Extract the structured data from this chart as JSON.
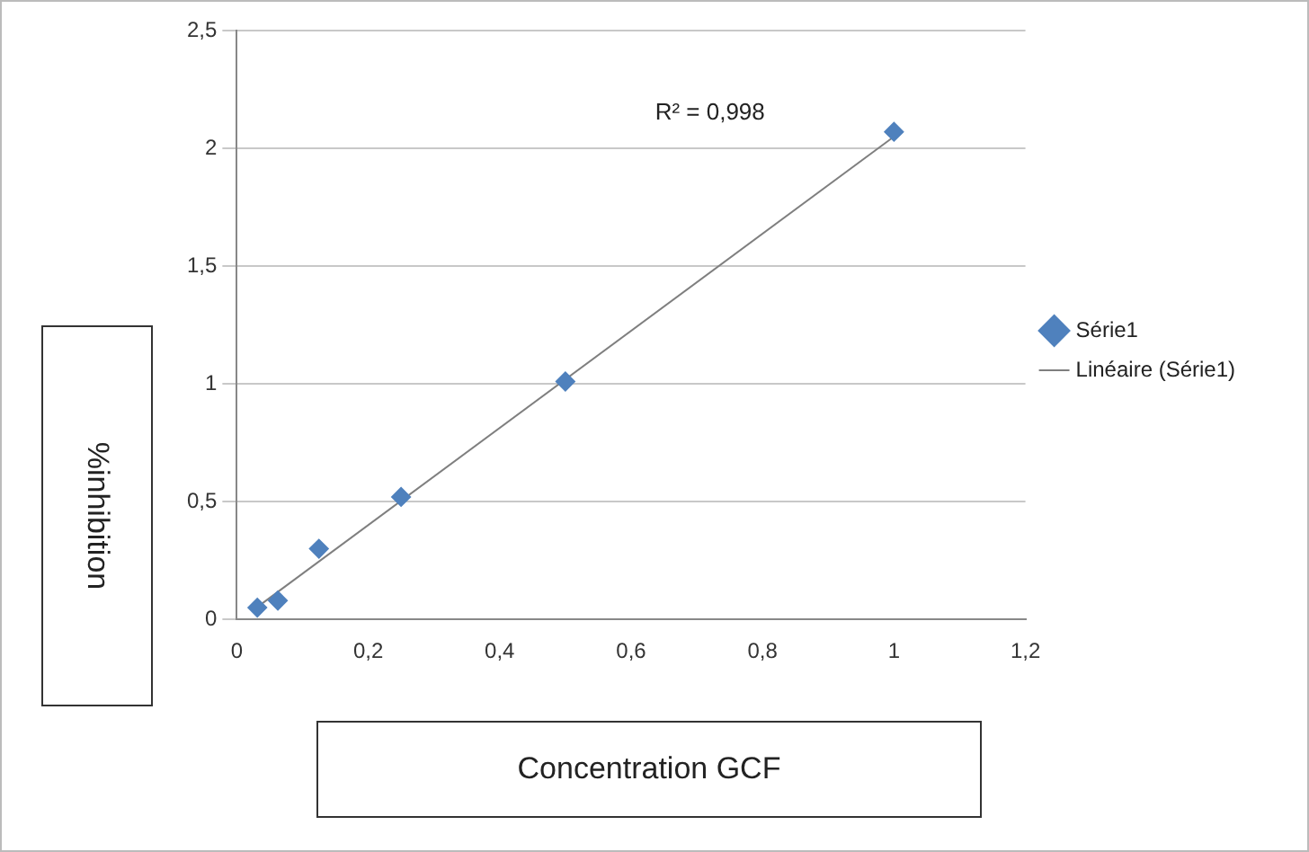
{
  "chart_data": {
    "type": "scatter",
    "xlabel": "Concentration GCF",
    "ylabel": "%inhibition",
    "annotations": [
      "R² = 0,998"
    ],
    "series": [
      {
        "name": "Série1",
        "color": "#4f81bd",
        "x": [
          0.03125,
          0.0625,
          0.125,
          0.25,
          0.5,
          1
        ],
        "values": [
          0.05,
          0.08,
          0.3,
          0.52,
          1.01,
          2.07
        ],
        "marker": "diamond"
      },
      {
        "name": "Linéaire (Série1)",
        "type": "line",
        "color": "#7f7f7f",
        "x": [
          0.03,
          1
        ],
        "values": [
          0.05,
          2.05
        ],
        "marker": "none",
        "line_style": "solid"
      }
    ],
    "xlim": [
      0,
      1.2
    ],
    "xticks": [
      0,
      {
        "value": 0.2,
        "label": "0,2"
      },
      {
        "value": 0.4,
        "label": "0,4"
      },
      {
        "value": 0.6,
        "label": "0,6"
      },
      {
        "value": 0.8,
        "label": "0,8"
      },
      1,
      {
        "value": 1.2,
        "label": "1,2"
      }
    ],
    "ylim": [
      0,
      2.5
    ],
    "yticks": [
      0,
      {
        "value": 0.5,
        "label": "0,5"
      },
      1,
      {
        "value": 1.5,
        "label": "1,5"
      },
      2,
      {
        "value": 2.5,
        "label": "2,5"
      }
    ],
    "grid": "y",
    "legend": "right"
  }
}
